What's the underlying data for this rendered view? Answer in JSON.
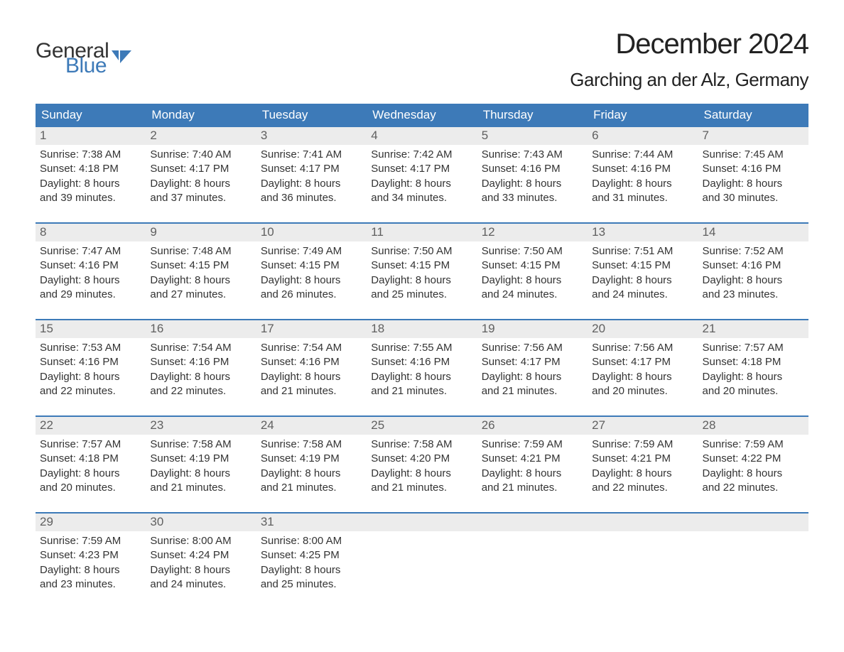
{
  "logo": {
    "text_general": "General",
    "text_blue": "Blue",
    "icon_color": "#3d7ab8"
  },
  "header": {
    "month_title": "December 2024",
    "location": "Garching an der Alz, Germany"
  },
  "colors": {
    "header_bg": "#3d7ab8",
    "day_number_bg": "#ececec",
    "text": "#333333",
    "day_number_text": "#606060",
    "white": "#ffffff"
  },
  "weekdays": [
    "Sunday",
    "Monday",
    "Tuesday",
    "Wednesday",
    "Thursday",
    "Friday",
    "Saturday"
  ],
  "weeks": [
    [
      {
        "day": "1",
        "sunrise": "Sunrise: 7:38 AM",
        "sunset": "Sunset: 4:18 PM",
        "daylight1": "Daylight: 8 hours",
        "daylight2": "and 39 minutes."
      },
      {
        "day": "2",
        "sunrise": "Sunrise: 7:40 AM",
        "sunset": "Sunset: 4:17 PM",
        "daylight1": "Daylight: 8 hours",
        "daylight2": "and 37 minutes."
      },
      {
        "day": "3",
        "sunrise": "Sunrise: 7:41 AM",
        "sunset": "Sunset: 4:17 PM",
        "daylight1": "Daylight: 8 hours",
        "daylight2": "and 36 minutes."
      },
      {
        "day": "4",
        "sunrise": "Sunrise: 7:42 AM",
        "sunset": "Sunset: 4:17 PM",
        "daylight1": "Daylight: 8 hours",
        "daylight2": "and 34 minutes."
      },
      {
        "day": "5",
        "sunrise": "Sunrise: 7:43 AM",
        "sunset": "Sunset: 4:16 PM",
        "daylight1": "Daylight: 8 hours",
        "daylight2": "and 33 minutes."
      },
      {
        "day": "6",
        "sunrise": "Sunrise: 7:44 AM",
        "sunset": "Sunset: 4:16 PM",
        "daylight1": "Daylight: 8 hours",
        "daylight2": "and 31 minutes."
      },
      {
        "day": "7",
        "sunrise": "Sunrise: 7:45 AM",
        "sunset": "Sunset: 4:16 PM",
        "daylight1": "Daylight: 8 hours",
        "daylight2": "and 30 minutes."
      }
    ],
    [
      {
        "day": "8",
        "sunrise": "Sunrise: 7:47 AM",
        "sunset": "Sunset: 4:16 PM",
        "daylight1": "Daylight: 8 hours",
        "daylight2": "and 29 minutes."
      },
      {
        "day": "9",
        "sunrise": "Sunrise: 7:48 AM",
        "sunset": "Sunset: 4:15 PM",
        "daylight1": "Daylight: 8 hours",
        "daylight2": "and 27 minutes."
      },
      {
        "day": "10",
        "sunrise": "Sunrise: 7:49 AM",
        "sunset": "Sunset: 4:15 PM",
        "daylight1": "Daylight: 8 hours",
        "daylight2": "and 26 minutes."
      },
      {
        "day": "11",
        "sunrise": "Sunrise: 7:50 AM",
        "sunset": "Sunset: 4:15 PM",
        "daylight1": "Daylight: 8 hours",
        "daylight2": "and 25 minutes."
      },
      {
        "day": "12",
        "sunrise": "Sunrise: 7:50 AM",
        "sunset": "Sunset: 4:15 PM",
        "daylight1": "Daylight: 8 hours",
        "daylight2": "and 24 minutes."
      },
      {
        "day": "13",
        "sunrise": "Sunrise: 7:51 AM",
        "sunset": "Sunset: 4:15 PM",
        "daylight1": "Daylight: 8 hours",
        "daylight2": "and 24 minutes."
      },
      {
        "day": "14",
        "sunrise": "Sunrise: 7:52 AM",
        "sunset": "Sunset: 4:16 PM",
        "daylight1": "Daylight: 8 hours",
        "daylight2": "and 23 minutes."
      }
    ],
    [
      {
        "day": "15",
        "sunrise": "Sunrise: 7:53 AM",
        "sunset": "Sunset: 4:16 PM",
        "daylight1": "Daylight: 8 hours",
        "daylight2": "and 22 minutes."
      },
      {
        "day": "16",
        "sunrise": "Sunrise: 7:54 AM",
        "sunset": "Sunset: 4:16 PM",
        "daylight1": "Daylight: 8 hours",
        "daylight2": "and 22 minutes."
      },
      {
        "day": "17",
        "sunrise": "Sunrise: 7:54 AM",
        "sunset": "Sunset: 4:16 PM",
        "daylight1": "Daylight: 8 hours",
        "daylight2": "and 21 minutes."
      },
      {
        "day": "18",
        "sunrise": "Sunrise: 7:55 AM",
        "sunset": "Sunset: 4:16 PM",
        "daylight1": "Daylight: 8 hours",
        "daylight2": "and 21 minutes."
      },
      {
        "day": "19",
        "sunrise": "Sunrise: 7:56 AM",
        "sunset": "Sunset: 4:17 PM",
        "daylight1": "Daylight: 8 hours",
        "daylight2": "and 21 minutes."
      },
      {
        "day": "20",
        "sunrise": "Sunrise: 7:56 AM",
        "sunset": "Sunset: 4:17 PM",
        "daylight1": "Daylight: 8 hours",
        "daylight2": "and 20 minutes."
      },
      {
        "day": "21",
        "sunrise": "Sunrise: 7:57 AM",
        "sunset": "Sunset: 4:18 PM",
        "daylight1": "Daylight: 8 hours",
        "daylight2": "and 20 minutes."
      }
    ],
    [
      {
        "day": "22",
        "sunrise": "Sunrise: 7:57 AM",
        "sunset": "Sunset: 4:18 PM",
        "daylight1": "Daylight: 8 hours",
        "daylight2": "and 20 minutes."
      },
      {
        "day": "23",
        "sunrise": "Sunrise: 7:58 AM",
        "sunset": "Sunset: 4:19 PM",
        "daylight1": "Daylight: 8 hours",
        "daylight2": "and 21 minutes."
      },
      {
        "day": "24",
        "sunrise": "Sunrise: 7:58 AM",
        "sunset": "Sunset: 4:19 PM",
        "daylight1": "Daylight: 8 hours",
        "daylight2": "and 21 minutes."
      },
      {
        "day": "25",
        "sunrise": "Sunrise: 7:58 AM",
        "sunset": "Sunset: 4:20 PM",
        "daylight1": "Daylight: 8 hours",
        "daylight2": "and 21 minutes."
      },
      {
        "day": "26",
        "sunrise": "Sunrise: 7:59 AM",
        "sunset": "Sunset: 4:21 PM",
        "daylight1": "Daylight: 8 hours",
        "daylight2": "and 21 minutes."
      },
      {
        "day": "27",
        "sunrise": "Sunrise: 7:59 AM",
        "sunset": "Sunset: 4:21 PM",
        "daylight1": "Daylight: 8 hours",
        "daylight2": "and 22 minutes."
      },
      {
        "day": "28",
        "sunrise": "Sunrise: 7:59 AM",
        "sunset": "Sunset: 4:22 PM",
        "daylight1": "Daylight: 8 hours",
        "daylight2": "and 22 minutes."
      }
    ],
    [
      {
        "day": "29",
        "sunrise": "Sunrise: 7:59 AM",
        "sunset": "Sunset: 4:23 PM",
        "daylight1": "Daylight: 8 hours",
        "daylight2": "and 23 minutes."
      },
      {
        "day": "30",
        "sunrise": "Sunrise: 8:00 AM",
        "sunset": "Sunset: 4:24 PM",
        "daylight1": "Daylight: 8 hours",
        "daylight2": "and 24 minutes."
      },
      {
        "day": "31",
        "sunrise": "Sunrise: 8:00 AM",
        "sunset": "Sunset: 4:25 PM",
        "daylight1": "Daylight: 8 hours",
        "daylight2": "and 25 minutes."
      },
      null,
      null,
      null,
      null
    ]
  ]
}
